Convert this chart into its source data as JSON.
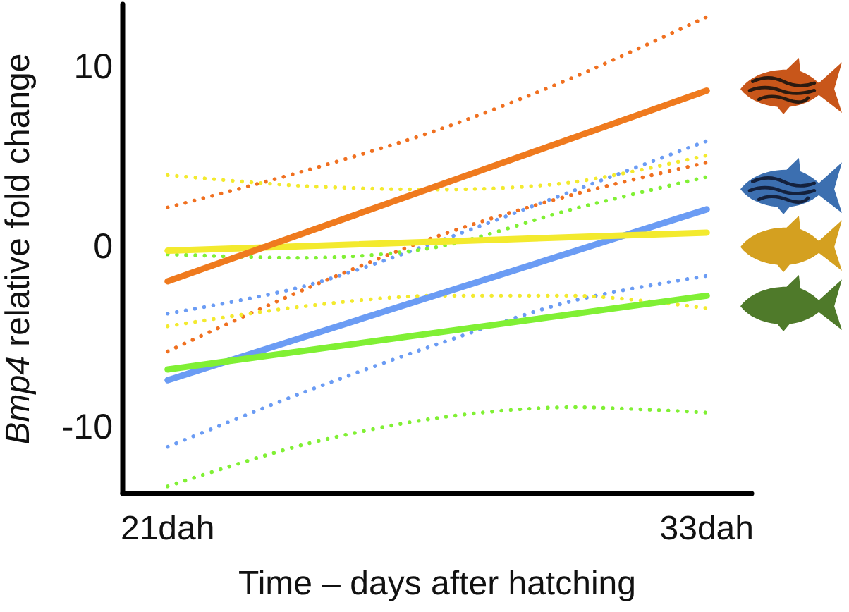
{
  "chart_data": {
    "type": "line",
    "xlabel": "Time – days after hatching",
    "ylabel": "Bmp4 relative fold change",
    "xlim": [
      20,
      34
    ],
    "xticks": [
      {
        "value": 21,
        "label": "21dah"
      },
      {
        "value": 33,
        "label": "33dah"
      }
    ],
    "ylim": [
      -13.7,
      13.5
    ],
    "yticks": [
      -10,
      0,
      10
    ],
    "marker": "none",
    "series": [
      {
        "color": "#f07020",
        "line_style": "dotted",
        "x": [
          21,
          24,
          27,
          30,
          33
        ],
        "values": [
          2.2,
          4.2,
          6.5,
          9.4,
          12.8
        ]
      },
      {
        "color": "#f07020",
        "line_style": "dotted",
        "x": [
          21,
          24,
          27,
          30,
          33
        ],
        "values": [
          -5.8,
          -2.4,
          0.6,
          2.9,
          4.7
        ]
      },
      {
        "color": "#6b9cf4",
        "line_style": "dotted",
        "x": [
          21,
          24,
          27,
          30,
          33
        ],
        "values": [
          -3.7,
          -2.2,
          0.3,
          3.1,
          5.9
        ]
      },
      {
        "color": "#6b9cf4",
        "line_style": "dotted",
        "x": [
          21,
          24,
          27,
          30,
          33
        ],
        "values": [
          -11.1,
          -8.1,
          -5.4,
          -3.0,
          -1.6
        ]
      },
      {
        "color": "#f3ea2e",
        "line_style": "dotted",
        "x": [
          21,
          24,
          27,
          30,
          33
        ],
        "values": [
          4.0,
          3.4,
          3.2,
          3.6,
          5.1
        ]
      },
      {
        "color": "#f3ea2e",
        "line_style": "dotted",
        "x": [
          21,
          24,
          27,
          30,
          33
        ],
        "values": [
          -4.4,
          -3.3,
          -2.7,
          -2.7,
          -3.4
        ]
      },
      {
        "color": "#80f034",
        "line_style": "dotted",
        "x": [
          21,
          24,
          27,
          30,
          33
        ],
        "values": [
          -0.4,
          -0.6,
          0,
          2.1,
          3.9
        ]
      },
      {
        "color": "#80f034",
        "line_style": "dotted",
        "x": [
          21,
          24,
          27,
          30,
          33
        ],
        "values": [
          -13.3,
          -11.0,
          -9.5,
          -8.9,
          -9.2
        ]
      },
      {
        "color": "#6b9cf4",
        "line_style": "solid",
        "x": [
          21,
          33
        ],
        "values": [
          -7.4,
          2.1
        ]
      },
      {
        "color": "#80f034",
        "line_style": "solid",
        "x": [
          21,
          33
        ],
        "values": [
          -6.8,
          -2.7
        ]
      },
      {
        "color": "#f3ea2e",
        "line_style": "solid",
        "x": [
          21,
          33
        ],
        "values": [
          -0.2,
          0.8
        ]
      },
      {
        "color": "#ef7a1e",
        "line_style": "solid",
        "x": [
          21,
          33
        ],
        "values": [
          -1.9,
          8.7
        ]
      }
    ]
  }
}
